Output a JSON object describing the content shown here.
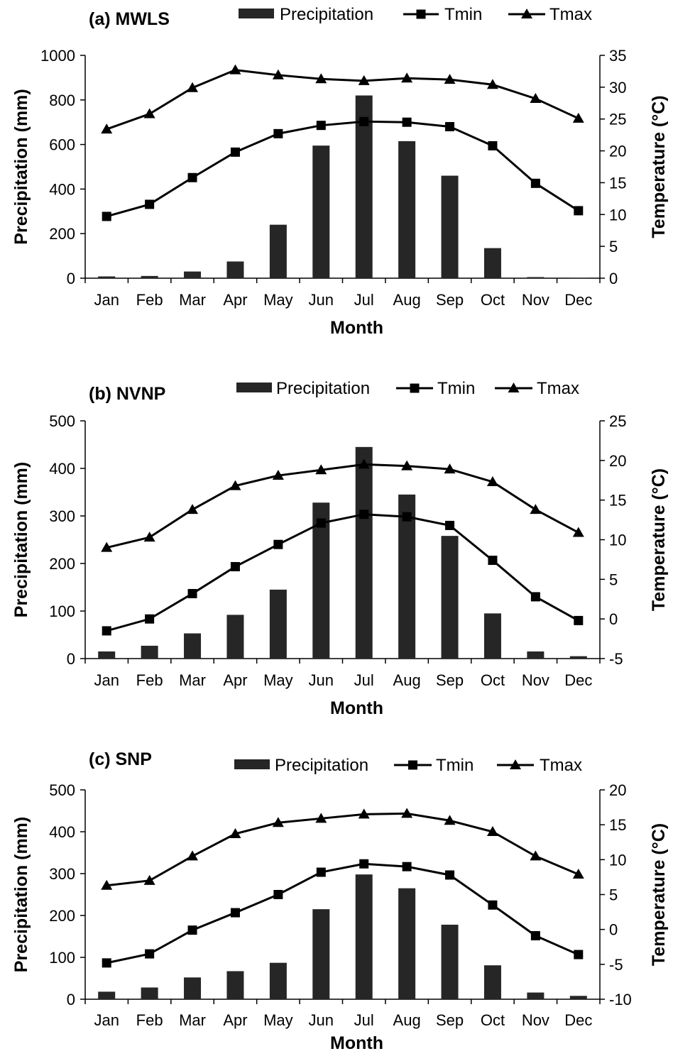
{
  "months": [
    "Jan",
    "Feb",
    "Mar",
    "Apr",
    "May",
    "Jun",
    "Jul",
    "Aug",
    "Sep",
    "Oct",
    "Nov",
    "Dec"
  ],
  "legend": {
    "precip": "Precipitation",
    "tmin": "Tmin",
    "tmax": "Tmax"
  },
  "colors": {
    "bar": "#262626",
    "line": "#000000",
    "background": "#ffffff"
  },
  "chart_data": [
    {
      "type": "bar+line",
      "title": "(a) MWLS",
      "xlabel": "Month",
      "ylabel": "Precipitation (mm)",
      "y2label": "Temperature (°C)",
      "ylim": [
        0,
        1000
      ],
      "y_ticks": [
        "0",
        "200",
        "400",
        "600",
        "800",
        "1000"
      ],
      "y2lim": [
        0,
        35
      ],
      "y2_ticks": [
        "0",
        "5",
        "10",
        "15",
        "20",
        "25",
        "30",
        "35"
      ],
      "categories": [
        "Jan",
        "Feb",
        "Mar",
        "Apr",
        "May",
        "Jun",
        "Jul",
        "Aug",
        "Sep",
        "Oct",
        "Nov",
        "Dec"
      ],
      "series": [
        {
          "name": "Precipitation",
          "kind": "bar",
          "axis": "left",
          "values": [
            8,
            10,
            30,
            75,
            240,
            595,
            820,
            615,
            460,
            135,
            5,
            1
          ]
        },
        {
          "name": "Tmin",
          "kind": "line",
          "marker": "square",
          "axis": "right",
          "values": [
            9.7,
            11.6,
            15.8,
            19.8,
            22.7,
            24.0,
            24.6,
            24.5,
            23.8,
            20.8,
            14.9,
            10.6
          ]
        },
        {
          "name": "Tmax",
          "kind": "line",
          "marker": "triangle",
          "axis": "right",
          "values": [
            23.4,
            25.8,
            29.9,
            32.7,
            31.9,
            31.3,
            31.0,
            31.4,
            31.2,
            30.4,
            28.2,
            25.1
          ]
        }
      ]
    },
    {
      "type": "bar+line",
      "title": "(b) NVNP",
      "xlabel": "Month",
      "ylabel": "Precipitation (mm)",
      "y2label": "Temperature (°C)",
      "ylim": [
        0,
        500
      ],
      "y_ticks": [
        "0",
        "100",
        "200",
        "300",
        "400",
        "500"
      ],
      "y2lim": [
        -5,
        25
      ],
      "y2_ticks": [
        "-5",
        "0",
        "5",
        "10",
        "15",
        "20",
        "25"
      ],
      "categories": [
        "Jan",
        "Feb",
        "Mar",
        "Apr",
        "May",
        "Jun",
        "Jul",
        "Aug",
        "Sep",
        "Oct",
        "Nov",
        "Dec"
      ],
      "series": [
        {
          "name": "Precipitation",
          "kind": "bar",
          "axis": "left",
          "values": [
            15,
            27,
            53,
            92,
            145,
            328,
            445,
            345,
            258,
            95,
            15,
            5
          ]
        },
        {
          "name": "Tmin",
          "kind": "line",
          "marker": "square",
          "axis": "right",
          "values": [
            -1.5,
            0.0,
            3.2,
            6.6,
            9.4,
            12.1,
            13.2,
            12.9,
            11.8,
            7.4,
            2.8,
            -0.2
          ]
        },
        {
          "name": "Tmax",
          "kind": "line",
          "marker": "triangle",
          "axis": "right",
          "values": [
            9.0,
            10.3,
            13.8,
            16.8,
            18.1,
            18.8,
            19.5,
            19.3,
            18.9,
            17.3,
            13.8,
            10.9
          ]
        }
      ]
    },
    {
      "type": "bar+line",
      "title": "(c) SNP",
      "xlabel": "Month",
      "ylabel": "Precipitation (mm)",
      "y2label": "Temperature (°C)",
      "ylim": [
        0,
        500
      ],
      "y_ticks": [
        "0",
        "100",
        "200",
        "300",
        "400",
        "500"
      ],
      "y2lim": [
        -10,
        20
      ],
      "y2_ticks": [
        "-10",
        "-5",
        "0",
        "5",
        "10",
        "15",
        "20"
      ],
      "categories": [
        "Jan",
        "Feb",
        "Mar",
        "Apr",
        "May",
        "Jun",
        "Jul",
        "Aug",
        "Sep",
        "Oct",
        "Nov",
        "Dec"
      ],
      "series": [
        {
          "name": "Precipitation",
          "kind": "bar",
          "axis": "left",
          "values": [
            18,
            28,
            52,
            67,
            87,
            215,
            298,
            265,
            178,
            81,
            16,
            8
          ]
        },
        {
          "name": "Tmin",
          "kind": "line",
          "marker": "square",
          "axis": "right",
          "values": [
            -4.8,
            -3.5,
            -0.1,
            2.4,
            5.0,
            8.2,
            9.4,
            9.0,
            7.8,
            3.5,
            -0.9,
            -3.6
          ]
        },
        {
          "name": "Tmax",
          "kind": "line",
          "marker": "triangle",
          "axis": "right",
          "values": [
            6.3,
            7.0,
            10.5,
            13.7,
            15.3,
            15.9,
            16.5,
            16.6,
            15.6,
            14.0,
            10.5,
            7.9
          ]
        }
      ]
    }
  ]
}
